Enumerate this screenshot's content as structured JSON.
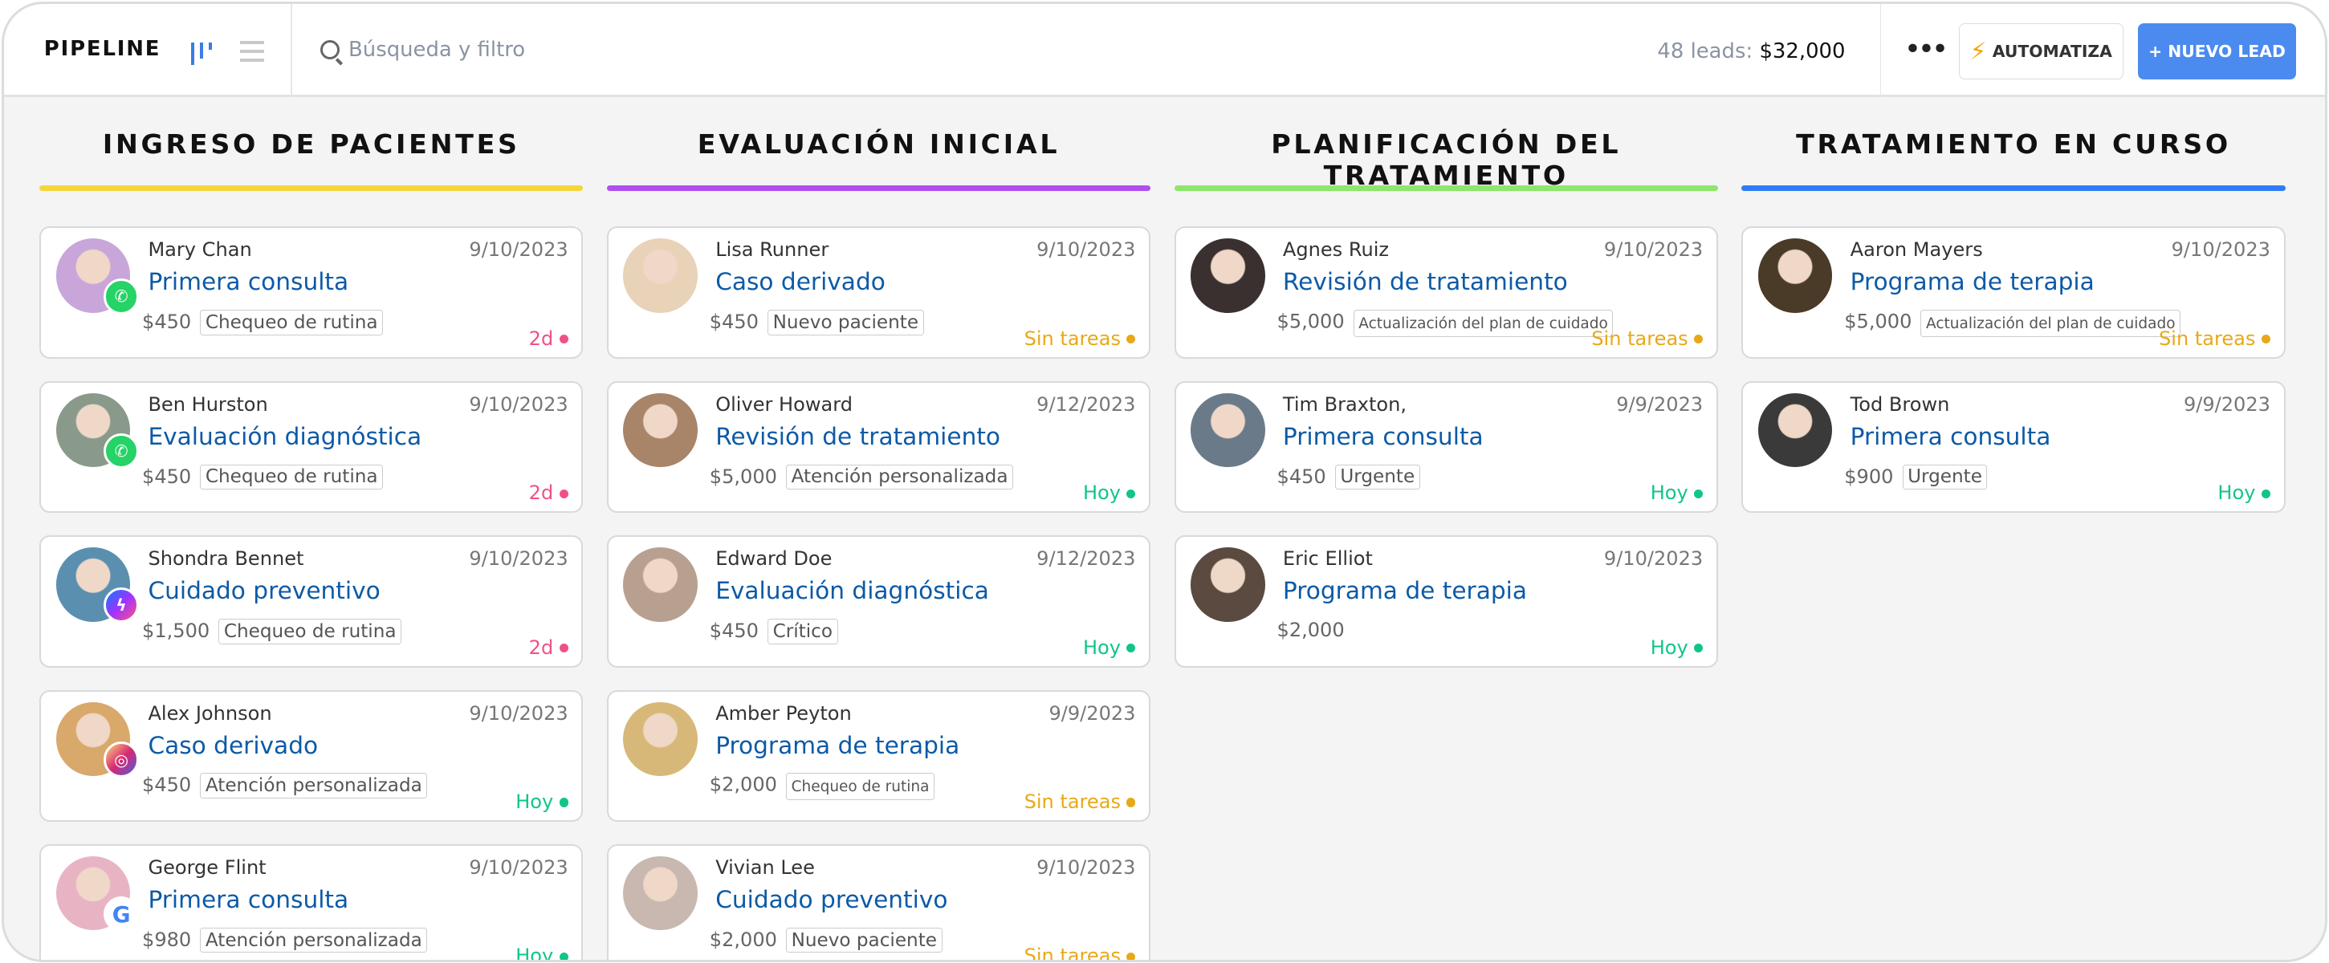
{
  "header": {
    "title": "PIPELINE",
    "search_placeholder": "Búsqueda y filtro",
    "leads_label": "48 leads:",
    "leads_total": "$32,000",
    "more": "•••",
    "automate_label": "AUTOMATIZA",
    "new_lead_label": "+ NUEVO LEAD"
  },
  "colors": {
    "accent": "#4b8bf0",
    "title": "#0c5aa6",
    "2d": "#f0508a",
    "Hoy": "#10c58b",
    "Sin tareas": "#e8a817"
  },
  "columns": [
    {
      "title": "INGRESO DE PACIENTES",
      "color": "#f5d63d",
      "cards": [
        {
          "name": "Mary Chan",
          "date": "9/10/2023",
          "title": "Primera consulta",
          "price": "$450",
          "tag": "Chequeo de rutina",
          "status": "2d",
          "channel": "whatsapp",
          "avatar": "#c9a6d9"
        },
        {
          "name": "Ben Hurston",
          "date": "9/10/2023",
          "title": "Evaluación diagnóstica",
          "price": "$450",
          "tag": "Chequeo de rutina",
          "status": "2d",
          "channel": "whatsapp",
          "avatar": "#8a9a8a"
        },
        {
          "name": "Shondra Bennet",
          "date": "9/10/2023",
          "title": "Cuidado preventivo",
          "price": "$1,500",
          "tag": "Chequeo de rutina",
          "status": "2d",
          "channel": "messenger",
          "avatar": "#5a8fb0"
        },
        {
          "name": "Alex Johnson",
          "date": "9/10/2023",
          "title": "Caso derivado",
          "price": "$450",
          "tag": "Atención personalizada",
          "status": "Hoy",
          "channel": "instagram",
          "avatar": "#d9a86b"
        },
        {
          "name": "George Flint",
          "date": "9/10/2023",
          "title": "Primera consulta",
          "price": "$980",
          "tag": "Atención personalizada",
          "status": "Hoy",
          "channel": "google",
          "avatar": "#e8b4c4"
        }
      ]
    },
    {
      "title": "EVALUACIÓN INICIAL",
      "color": "#b04ff0",
      "cards": [
        {
          "name": "Lisa Runner",
          "date": "9/10/2023",
          "title": "Caso derivado",
          "price": "$450",
          "tag": "Nuevo paciente",
          "status": "Sin tareas",
          "avatar": "#e8d2b8"
        },
        {
          "name": "Oliver Howard",
          "date": "9/12/2023",
          "title": "Revisión de tratamiento",
          "price": "$5,000",
          "tag": "Atención personalizada",
          "status": "Hoy",
          "avatar": "#a88468"
        },
        {
          "name": "Edward Doe",
          "date": "9/12/2023",
          "title": "Evaluación diagnóstica",
          "price": "$450",
          "tag": "Crítico",
          "status": "Hoy",
          "avatar": "#b8a090"
        },
        {
          "name": "Amber Peyton",
          "date": "9/9/2023",
          "title": "Programa de terapia",
          "price": "$2,000",
          "tag": "Chequeo de rutina",
          "tag_small": true,
          "status": "Sin tareas",
          "avatar": "#d8b878"
        },
        {
          "name": "Vivian Lee",
          "date": "9/10/2023",
          "title": "Cuidado preventivo",
          "price": "$2,000",
          "tag": "Nuevo paciente",
          "status": "Sin tareas",
          "avatar": "#c8b8b0"
        }
      ]
    },
    {
      "title": "PLANIFICACIÓN DEL TRATAMIENTO",
      "color": "#8ee66a",
      "cards": [
        {
          "name": "Agnes Ruiz",
          "date": "9/10/2023",
          "title": "Revisión de tratamiento",
          "price": "$5,000",
          "tag": "Actualización del plan de cuidado",
          "tag_small": true,
          "status": "Sin tareas",
          "avatar": "#3a3030"
        },
        {
          "name": "Tim Braxton,",
          "date": "9/9/2023",
          "title": "Primera consulta",
          "price": "$450",
          "tag": "Urgente",
          "status": "Hoy",
          "avatar": "#6a7a88"
        },
        {
          "name": "Eric Elliot",
          "date": "9/10/2023",
          "title": "Programa de terapia",
          "price": "$2,000",
          "status": "Hoy",
          "avatar": "#5a4a40"
        }
      ]
    },
    {
      "title": "TRATAMIENTO EN CURSO",
      "color": "#2f7cf6",
      "cards": [
        {
          "name": "Aaron Mayers",
          "date": "9/10/2023",
          "title": "Programa de terapia",
          "price": "$5,000",
          "tag": "Actualización del plan de cuidado",
          "tag_small": true,
          "status": "Sin tareas",
          "avatar": "#4a3a28"
        },
        {
          "name": "Tod Brown",
          "date": "9/9/2023",
          "title": "Primera consulta",
          "price": "$900",
          "tag": "Urgente",
          "status": "Hoy",
          "avatar": "#3a3a3a"
        }
      ]
    }
  ]
}
